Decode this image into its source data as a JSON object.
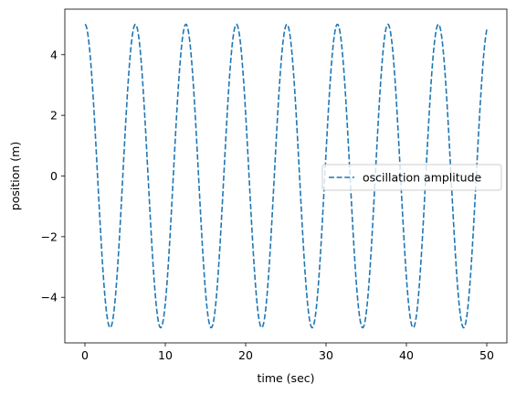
{
  "chart_data": {
    "type": "line",
    "title": "",
    "xlabel": "time (sec)",
    "ylabel": "position (m)",
    "xlim": [
      -2.5,
      52.5
    ],
    "ylim": [
      -5.5,
      5.5
    ],
    "xticks": [
      0,
      10,
      20,
      30,
      40,
      50
    ],
    "xtick_labels": [
      "0",
      "10",
      "20",
      "30",
      "40",
      "50"
    ],
    "yticks": [
      -4,
      -2,
      0,
      2,
      4
    ],
    "ytick_labels": [
      "−4",
      "−2",
      "0",
      "2",
      "4"
    ],
    "grid": false,
    "legend_position": "center-right",
    "series": [
      {
        "name": "oscillation amplitude",
        "color": "#1f77b4",
        "line_style": "dashed",
        "function": "5*cos(t)",
        "x": [
          0,
          3.14,
          6.28,
          9.42,
          12.57,
          15.71,
          18.85,
          21.99,
          25.13,
          28.27,
          31.42,
          34.56,
          37.7,
          40.84,
          43.98,
          47.12,
          50
        ],
        "y": [
          5,
          -5,
          5,
          -5,
          5,
          -5,
          5,
          -5,
          5,
          -5,
          5,
          -5,
          5,
          -5,
          5,
          -5,
          4.82
        ]
      }
    ]
  }
}
